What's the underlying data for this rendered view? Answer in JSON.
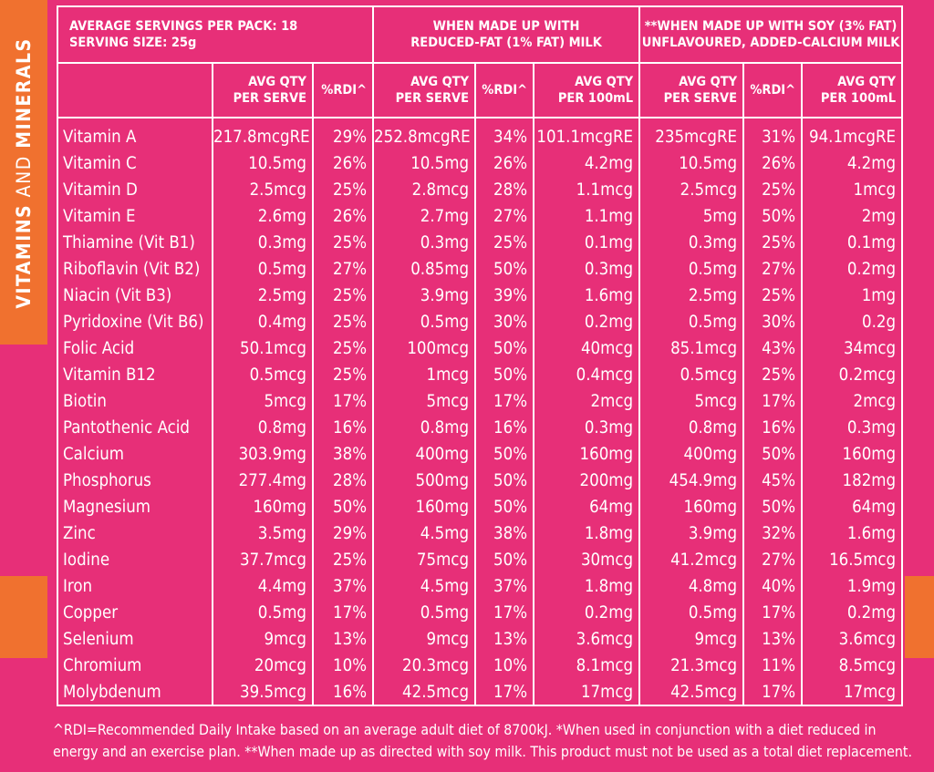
{
  "side_label": {
    "part1": "VITAMINS",
    "part2": " AND ",
    "part3": "MINERALS"
  },
  "header": {
    "servings_line": "AVERAGE SERVINGS PER PACK: 18",
    "size_line": "SERVING SIZE: 25g",
    "group_milk_line1": "WHEN MADE UP WITH",
    "group_milk_line2": "REDUCED-FAT (1% FAT) MILK",
    "group_soy_line1": "**WHEN MADE UP WITH SOY (3% FAT)",
    "group_soy_line2": "UNFLAVOURED, ADDED-CALCIUM MILK"
  },
  "columns": [
    {
      "line1": "AVG QTY",
      "line2": "PER SERVE"
    },
    {
      "line1": "%RDI^",
      "line2": ""
    },
    {
      "line1": "AVG QTY",
      "line2": "PER SERVE"
    },
    {
      "line1": "%RDI^",
      "line2": ""
    },
    {
      "line1": "AVG QTY",
      "line2": "PER 100mL"
    },
    {
      "line1": "AVG QTY",
      "line2": "PER SERVE"
    },
    {
      "line1": "%RDI^",
      "line2": ""
    },
    {
      "line1": "AVG QTY",
      "line2": "PER 100mL"
    }
  ],
  "rows": [
    [
      "Vitamin A",
      "217.8mcgRE",
      "29%",
      "252.8mcgRE",
      "34%",
      "101.1mcgRE",
      "235mcgRE",
      "31%",
      "94.1mcgRE"
    ],
    [
      "Vitamin C",
      "10.5mg",
      "26%",
      "10.5mg",
      "26%",
      "4.2mg",
      "10.5mg",
      "26%",
      "4.2mg"
    ],
    [
      "Vitamin D",
      "2.5mcg",
      "25%",
      "2.8mcg",
      "28%",
      "1.1mcg",
      "2.5mcg",
      "25%",
      "1mcg"
    ],
    [
      "Vitamin E",
      "2.6mg",
      "26%",
      "2.7mg",
      "27%",
      "1.1mg",
      "5mg",
      "50%",
      "2mg"
    ],
    [
      "Thiamine (Vit B1)",
      "0.3mg",
      "25%",
      "0.3mg",
      "25%",
      "0.1mg",
      "0.3mg",
      "25%",
      "0.1mg"
    ],
    [
      "Riboflavin (Vit B2)",
      "0.5mg",
      "27%",
      "0.85mg",
      "50%",
      "0.3mg",
      "0.5mg",
      "27%",
      "0.2mg"
    ],
    [
      "Niacin (Vit B3)",
      "2.5mg",
      "25%",
      "3.9mg",
      "39%",
      "1.6mg",
      "2.5mg",
      "25%",
      "1mg"
    ],
    [
      "Pyridoxine (Vit B6)",
      "0.4mg",
      "25%",
      "0.5mg",
      "30%",
      "0.2mg",
      "0.5mg",
      "30%",
      "0.2g"
    ],
    [
      "Folic Acid",
      "50.1mcg",
      "25%",
      "100mcg",
      "50%",
      "40mcg",
      "85.1mcg",
      "43%",
      "34mcg"
    ],
    [
      "Vitamin B12",
      "0.5mcg",
      "25%",
      "1mcg",
      "50%",
      "0.4mcg",
      "0.5mcg",
      "25%",
      "0.2mcg"
    ],
    [
      "Biotin",
      "5mcg",
      "17%",
      "5mcg",
      "17%",
      "2mcg",
      "5mcg",
      "17%",
      "2mcg"
    ],
    [
      "Pantothenic Acid",
      "0.8mg",
      "16%",
      "0.8mg",
      "16%",
      "0.3mg",
      "0.8mg",
      "16%",
      "0.3mg"
    ],
    [
      "Calcium",
      "303.9mg",
      "38%",
      "400mg",
      "50%",
      "160mg",
      "400mg",
      "50%",
      "160mg"
    ],
    [
      "Phosphorus",
      "277.4mg",
      "28%",
      "500mg",
      "50%",
      "200mg",
      "454.9mg",
      "45%",
      "182mg"
    ],
    [
      "Magnesium",
      "160mg",
      "50%",
      "160mg",
      "50%",
      "64mg",
      "160mg",
      "50%",
      "64mg"
    ],
    [
      "Zinc",
      "3.5mg",
      "29%",
      "4.5mg",
      "38%",
      "1.8mg",
      "3.9mg",
      "32%",
      "1.6mg"
    ],
    [
      "Iodine",
      "37.7mcg",
      "25%",
      "75mcg",
      "50%",
      "30mcg",
      "41.2mcg",
      "27%",
      "16.5mcg"
    ],
    [
      "Iron",
      "4.4mg",
      "37%",
      "4.5mg",
      "37%",
      "1.8mg",
      "4.8mg",
      "40%",
      "1.9mg"
    ],
    [
      "Copper",
      "0.5mg",
      "17%",
      "0.5mg",
      "17%",
      "0.2mg",
      "0.5mg",
      "17%",
      "0.2mg"
    ],
    [
      "Selenium",
      "9mcg",
      "13%",
      "9mcg",
      "13%",
      "3.6mcg",
      "9mcg",
      "13%",
      "3.6mcg"
    ],
    [
      "Chromium",
      "20mcg",
      "10%",
      "20.3mcg",
      "10%",
      "8.1mcg",
      "21.3mcg",
      "11%",
      "8.5mcg"
    ],
    [
      "Molybdenum",
      "39.5mcg",
      "16%",
      "42.5mcg",
      "17%",
      "17mcg",
      "42.5mcg",
      "17%",
      "17mcg"
    ]
  ],
  "footnote": {
    "line1": "^RDI=Recommended Daily Intake based on an average adult diet of 8700kJ. *When used in  conjunction with a diet reduced in",
    "line2": "energy and an exercise plan. **When made up as directed with soy milk. This product must not be used as a total diet replacement."
  },
  "colors": {
    "background": "#e72f78",
    "accent_orange": "#f0712f",
    "text": "#ffffff"
  }
}
